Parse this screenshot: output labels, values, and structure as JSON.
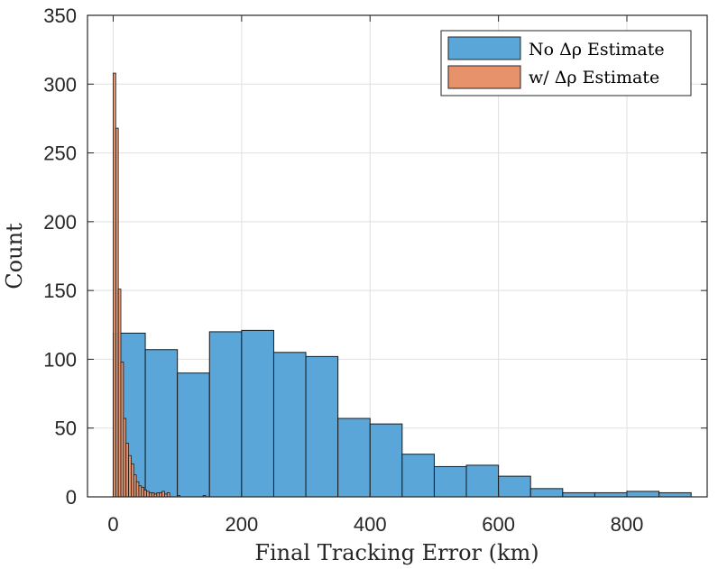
{
  "chart_data": {
    "type": "bar",
    "xlabel": "Final Tracking Error (km)",
    "ylabel": "Count",
    "xlim": [
      -40,
      925
    ],
    "ylim": [
      0,
      350
    ],
    "xticks": [
      0,
      200,
      400,
      600,
      800
    ],
    "yticks": [
      0,
      50,
      100,
      150,
      200,
      250,
      300,
      350
    ],
    "grid": true,
    "legend_location": "top-right",
    "series": [
      {
        "name": "No Δρ Estimate",
        "color": "#5aa6d8",
        "bin_width": 50,
        "bin_starts": [
          0,
          50,
          100,
          150,
          200,
          250,
          300,
          350,
          400,
          450,
          500,
          550,
          600,
          650,
          700,
          750,
          800,
          850
        ],
        "values": [
          119,
          107,
          90,
          120,
          121,
          105,
          102,
          57,
          53,
          31,
          22,
          23,
          15,
          6,
          3,
          3,
          4,
          3
        ]
      },
      {
        "name": "w/ Δρ Estimate",
        "color": "#e8926c",
        "bin_width": 4,
        "bin_starts": [
          0,
          4,
          8,
          12,
          16,
          20,
          24,
          28,
          32,
          36,
          40,
          44,
          48,
          52,
          56,
          60,
          64,
          68,
          72,
          76,
          80,
          84,
          88,
          92,
          96,
          100,
          104,
          108,
          112,
          116,
          120,
          124,
          128,
          132,
          136,
          140,
          144
        ],
        "values": [
          308,
          268,
          151,
          98,
          57,
          39,
          30,
          24,
          16,
          11,
          8,
          7,
          5,
          4,
          3,
          3,
          2,
          3,
          3,
          4,
          2,
          3,
          0,
          0,
          0,
          1,
          0,
          0,
          0,
          0,
          0,
          0,
          0,
          0,
          0,
          1,
          0
        ]
      }
    ]
  }
}
